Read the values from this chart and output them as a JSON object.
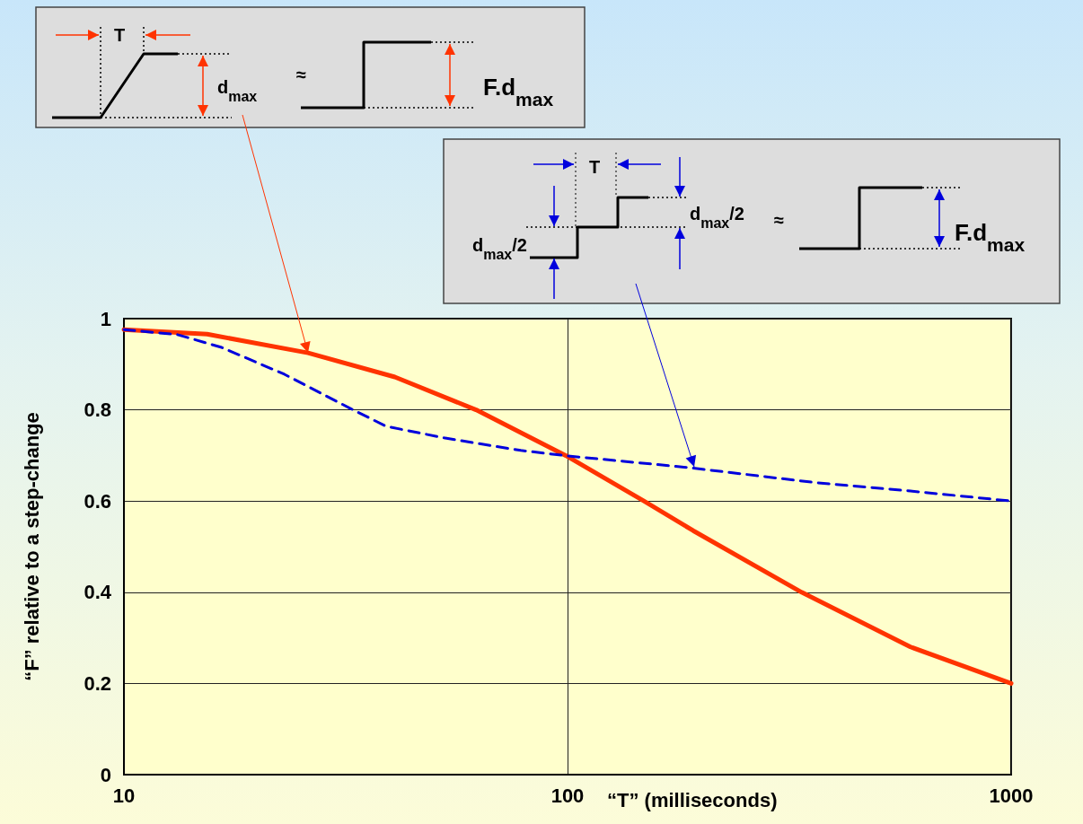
{
  "chart_data": {
    "type": "line",
    "xlabel": "“T” (milliseconds)",
    "ylabel": "“F” relative to a step-change",
    "series": [
      {
        "color": "#ff3300",
        "line_style": "solid",
        "x": [
          10,
          15.4,
          26,
          40.8,
          62.2,
          99,
          148.6,
          192,
          337,
          593,
          1000
        ],
        "values": [
          0.976,
          0.966,
          0.925,
          0.872,
          0.8,
          0.7,
          0.6,
          0.535,
          0.4,
          0.28,
          0.2
        ]
      },
      {
        "color": "#0000dd",
        "line_style": "dashed",
        "x": [
          10,
          13.2,
          16.6,
          23,
          32.4,
          39,
          53,
          78.5,
          100,
          189,
          365,
          593,
          1000
        ],
        "values": [
          0.976,
          0.965,
          0.937,
          0.878,
          0.803,
          0.764,
          0.738,
          0.711,
          0.699,
          0.673,
          0.64,
          0.622,
          0.6
        ]
      }
    ],
    "log": "x",
    "xlim": [
      10,
      1000
    ],
    "xticks": [
      10,
      100,
      1000
    ],
    "ylim": [
      0,
      1
    ],
    "yticks": [
      0,
      0.2,
      0.4,
      0.6,
      0.8,
      1
    ],
    "grid": true,
    "marker": "none",
    "annotations": [
      "T",
      {
        "text": "d$_{max}$",
        "x": 26,
        "y": 0.925
      },
      "≈",
      "F.d$_{max}$",
      "T",
      "d$_{max}$/2",
      "d$_{max}$/2",
      "≈",
      "F.d$_{max}$"
    ]
  }
}
